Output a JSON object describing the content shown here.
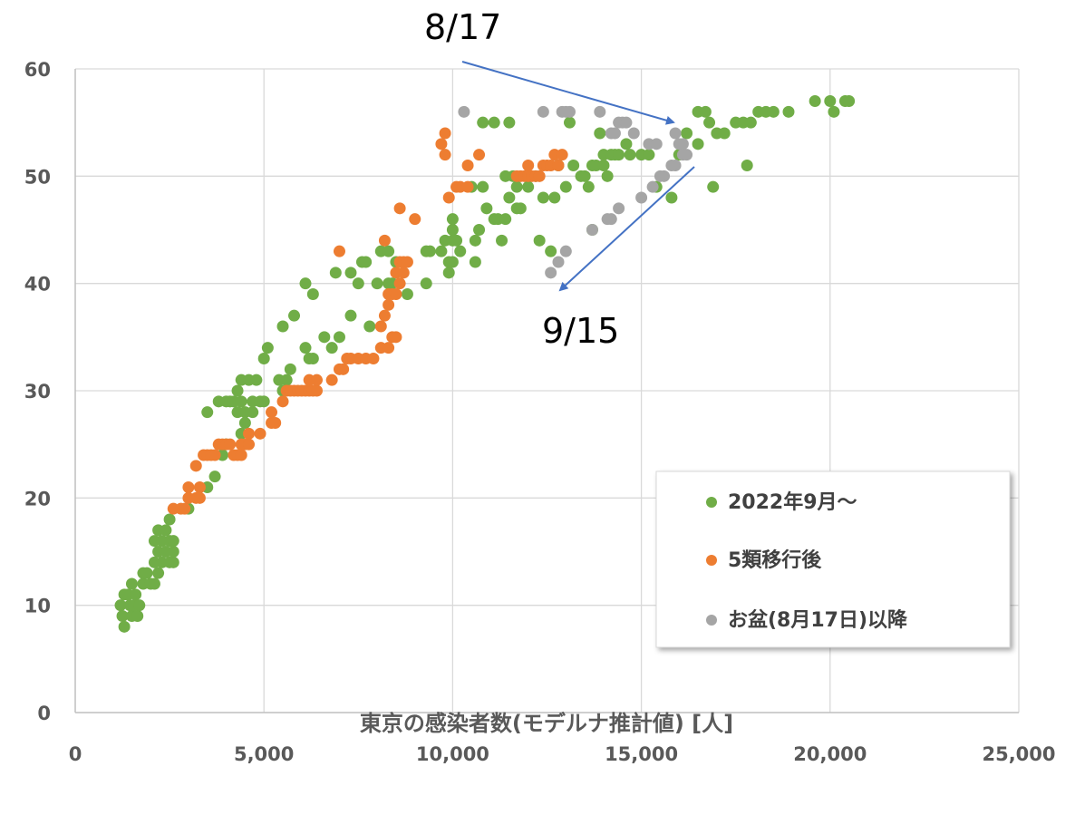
{
  "chart_data": {
    "type": "scatter",
    "title": "",
    "xlabel": "東京の感染者数(モデルナ推計値) [人]",
    "ylabel": "",
    "xlim": [
      0,
      25000
    ],
    "ylim": [
      0,
      60
    ],
    "x_ticks": [
      "0",
      "5,000",
      "10,000",
      "15,000",
      "20,000",
      "25,000"
    ],
    "y_ticks": [
      "0",
      "10",
      "20",
      "30",
      "40",
      "50",
      "60"
    ],
    "grid": true,
    "legend_position": "bottom-right",
    "annotations": [
      "8/17",
      "9/15"
    ],
    "series": [
      {
        "name": "2022年9月～",
        "color": "#70ad47",
        "points": [
          [
            1200,
            10
          ],
          [
            1300,
            11
          ],
          [
            1250,
            9
          ],
          [
            1300,
            8
          ],
          [
            1400,
            11
          ],
          [
            1450,
            10
          ],
          [
            1500,
            9
          ],
          [
            1550,
            10
          ],
          [
            1500,
            12
          ],
          [
            1600,
            11
          ],
          [
            1650,
            9
          ],
          [
            1700,
            10
          ],
          [
            1800,
            12
          ],
          [
            1800,
            13
          ],
          [
            1900,
            13
          ],
          [
            2000,
            12
          ],
          [
            2100,
            12
          ],
          [
            2100,
            14
          ],
          [
            2200,
            13
          ],
          [
            2200,
            15
          ],
          [
            2100,
            16
          ],
          [
            2200,
            17
          ],
          [
            2300,
            16
          ],
          [
            2300,
            14
          ],
          [
            2400,
            15
          ],
          [
            2400,
            17
          ],
          [
            2500,
            14
          ],
          [
            2500,
            16
          ],
          [
            2500,
            18
          ],
          [
            2600,
            14
          ],
          [
            2600,
            15
          ],
          [
            2600,
            16
          ],
          [
            3000,
            19
          ],
          [
            3500,
            21
          ],
          [
            3500,
            28
          ],
          [
            3700,
            22
          ],
          [
            3800,
            29
          ],
          [
            3900,
            24
          ],
          [
            4000,
            25
          ],
          [
            4000,
            29
          ],
          [
            4100,
            29
          ],
          [
            4200,
            29
          ],
          [
            4300,
            30
          ],
          [
            4300,
            28
          ],
          [
            4400,
            29
          ],
          [
            4400,
            26
          ],
          [
            4500,
            27
          ],
          [
            4400,
            31
          ],
          [
            4500,
            28
          ],
          [
            4600,
            31
          ],
          [
            4700,
            28
          ],
          [
            4700,
            29
          ],
          [
            4800,
            31
          ],
          [
            4900,
            29
          ],
          [
            5000,
            29
          ],
          [
            5000,
            33
          ],
          [
            5100,
            34
          ],
          [
            5400,
            31
          ],
          [
            5500,
            30
          ],
          [
            5500,
            36
          ],
          [
            5600,
            31
          ],
          [
            5700,
            32
          ],
          [
            5800,
            37
          ],
          [
            6100,
            40
          ],
          [
            6100,
            34
          ],
          [
            6200,
            33
          ],
          [
            6300,
            39
          ],
          [
            6300,
            33
          ],
          [
            6600,
            35
          ],
          [
            6800,
            34
          ],
          [
            6900,
            41
          ],
          [
            7000,
            35
          ],
          [
            7300,
            37
          ],
          [
            7300,
            41
          ],
          [
            7500,
            40
          ],
          [
            7600,
            42
          ],
          [
            7700,
            42
          ],
          [
            7800,
            36
          ],
          [
            8000,
            40
          ],
          [
            8100,
            43
          ],
          [
            8300,
            43
          ],
          [
            8300,
            40
          ],
          [
            8400,
            40
          ],
          [
            8500,
            42
          ],
          [
            8800,
            39
          ],
          [
            9300,
            43
          ],
          [
            9300,
            40
          ],
          [
            9400,
            43
          ],
          [
            9700,
            43
          ],
          [
            9800,
            44
          ],
          [
            9900,
            41
          ],
          [
            9900,
            42
          ],
          [
            10000,
            42
          ],
          [
            10000,
            44
          ],
          [
            10000,
            45
          ],
          [
            10000,
            46
          ],
          [
            10100,
            44
          ],
          [
            10200,
            43
          ],
          [
            10500,
            49
          ],
          [
            10600,
            42
          ],
          [
            10600,
            44
          ],
          [
            10700,
            45
          ],
          [
            10800,
            49
          ],
          [
            10800,
            55
          ],
          [
            10900,
            47
          ],
          [
            11100,
            46
          ],
          [
            11100,
            55
          ],
          [
            11200,
            46
          ],
          [
            11300,
            44
          ],
          [
            11400,
            50
          ],
          [
            11400,
            46
          ],
          [
            11500,
            48
          ],
          [
            11500,
            55
          ],
          [
            11600,
            50
          ],
          [
            11700,
            47
          ],
          [
            11800,
            47
          ],
          [
            11700,
            49
          ],
          [
            12000,
            49
          ],
          [
            12200,
            50
          ],
          [
            12300,
            44
          ],
          [
            12400,
            48
          ],
          [
            12600,
            43
          ],
          [
            12700,
            48
          ],
          [
            12800,
            51
          ],
          [
            13000,
            49
          ],
          [
            13100,
            55
          ],
          [
            13200,
            51
          ],
          [
            13400,
            50
          ],
          [
            13500,
            50
          ],
          [
            13600,
            49
          ],
          [
            13700,
            51
          ],
          [
            13700,
            45
          ],
          [
            13800,
            51
          ],
          [
            13900,
            54
          ],
          [
            14000,
            52
          ],
          [
            14000,
            51
          ],
          [
            14100,
            50
          ],
          [
            14200,
            52
          ],
          [
            14300,
            52
          ],
          [
            14400,
            52
          ],
          [
            14600,
            53
          ],
          [
            14700,
            52
          ],
          [
            15000,
            52
          ],
          [
            15200,
            52
          ],
          [
            15400,
            49
          ],
          [
            15800,
            48
          ],
          [
            16000,
            52
          ],
          [
            16200,
            54
          ],
          [
            16500,
            53
          ],
          [
            16500,
            56
          ],
          [
            16700,
            56
          ],
          [
            16800,
            55
          ],
          [
            16900,
            49
          ],
          [
            17000,
            54
          ],
          [
            17200,
            54
          ],
          [
            17500,
            55
          ],
          [
            17700,
            55
          ],
          [
            17800,
            51
          ],
          [
            17900,
            55
          ],
          [
            18100,
            56
          ],
          [
            18300,
            56
          ],
          [
            18500,
            56
          ],
          [
            18900,
            56
          ],
          [
            19600,
            57
          ],
          [
            20000,
            57
          ],
          [
            20100,
            56
          ],
          [
            20400,
            57
          ],
          [
            20500,
            57
          ]
        ]
      },
      {
        "name": "5類移行後",
        "color": "#ed7d31",
        "points": [
          [
            2600,
            19
          ],
          [
            2800,
            19
          ],
          [
            2900,
            19
          ],
          [
            3000,
            20
          ],
          [
            3000,
            21
          ],
          [
            3200,
            23
          ],
          [
            3200,
            20
          ],
          [
            3300,
            21
          ],
          [
            3300,
            20
          ],
          [
            3400,
            24
          ],
          [
            3500,
            24
          ],
          [
            3600,
            24
          ],
          [
            3700,
            24
          ],
          [
            3800,
            25
          ],
          [
            3900,
            25
          ],
          [
            4000,
            25
          ],
          [
            4100,
            25
          ],
          [
            4200,
            24
          ],
          [
            4300,
            24
          ],
          [
            4400,
            25
          ],
          [
            4400,
            24
          ],
          [
            4500,
            25
          ],
          [
            4600,
            25
          ],
          [
            4600,
            26
          ],
          [
            4900,
            26
          ],
          [
            5200,
            27
          ],
          [
            5200,
            28
          ],
          [
            5300,
            27
          ],
          [
            5500,
            29
          ],
          [
            5600,
            30
          ],
          [
            5700,
            30
          ],
          [
            5800,
            30
          ],
          [
            5900,
            30
          ],
          [
            6000,
            30
          ],
          [
            6100,
            30
          ],
          [
            6200,
            30
          ],
          [
            6200,
            31
          ],
          [
            6300,
            30
          ],
          [
            6400,
            30
          ],
          [
            6400,
            31
          ],
          [
            6800,
            31
          ],
          [
            7000,
            32
          ],
          [
            7000,
            43
          ],
          [
            7100,
            32
          ],
          [
            7200,
            33
          ],
          [
            7300,
            33
          ],
          [
            7500,
            33
          ],
          [
            7700,
            33
          ],
          [
            7900,
            33
          ],
          [
            8100,
            36
          ],
          [
            8100,
            34
          ],
          [
            8200,
            37
          ],
          [
            8200,
            44
          ],
          [
            8300,
            34
          ],
          [
            8300,
            38
          ],
          [
            8300,
            39
          ],
          [
            8400,
            39
          ],
          [
            8400,
            35
          ],
          [
            8500,
            39
          ],
          [
            8500,
            41
          ],
          [
            8500,
            35
          ],
          [
            8600,
            42
          ],
          [
            8600,
            40
          ],
          [
            8700,
            41
          ],
          [
            8700,
            42
          ],
          [
            8800,
            42
          ],
          [
            8600,
            47
          ],
          [
            9000,
            46
          ],
          [
            9700,
            53
          ],
          [
            9800,
            54
          ],
          [
            9800,
            52
          ],
          [
            9900,
            48
          ],
          [
            10100,
            49
          ],
          [
            10200,
            49
          ],
          [
            10400,
            51
          ],
          [
            10700,
            52
          ],
          [
            10400,
            49
          ],
          [
            11700,
            50
          ],
          [
            11800,
            50
          ],
          [
            11900,
            50
          ],
          [
            12000,
            50
          ],
          [
            12000,
            51
          ],
          [
            12100,
            50
          ],
          [
            12200,
            50
          ],
          [
            12300,
            50
          ],
          [
            12400,
            51
          ],
          [
            12500,
            51
          ],
          [
            12600,
            51
          ],
          [
            12700,
            52
          ],
          [
            12800,
            51
          ],
          [
            12900,
            52
          ]
        ]
      },
      {
        "name": "お盆(8月17日)以降",
        "color": "#a5a5a5",
        "points": [
          [
            10300,
            56
          ],
          [
            12400,
            56
          ],
          [
            12900,
            56
          ],
          [
            13000,
            56
          ],
          [
            13100,
            56
          ],
          [
            13900,
            56
          ],
          [
            14200,
            54
          ],
          [
            14300,
            54
          ],
          [
            14400,
            55
          ],
          [
            14500,
            55
          ],
          [
            14600,
            55
          ],
          [
            14800,
            54
          ],
          [
            15200,
            53
          ],
          [
            15400,
            53
          ],
          [
            15900,
            54
          ],
          [
            16000,
            53
          ],
          [
            16100,
            53
          ],
          [
            16100,
            52
          ],
          [
            16200,
            52
          ],
          [
            15900,
            51
          ],
          [
            15800,
            51
          ],
          [
            15600,
            50
          ],
          [
            15500,
            50
          ],
          [
            15300,
            49
          ],
          [
            15000,
            48
          ],
          [
            14400,
            47
          ],
          [
            14200,
            46
          ],
          [
            14100,
            46
          ],
          [
            13700,
            45
          ],
          [
            13000,
            43
          ],
          [
            12800,
            42
          ],
          [
            12600,
            41
          ]
        ]
      }
    ]
  }
}
